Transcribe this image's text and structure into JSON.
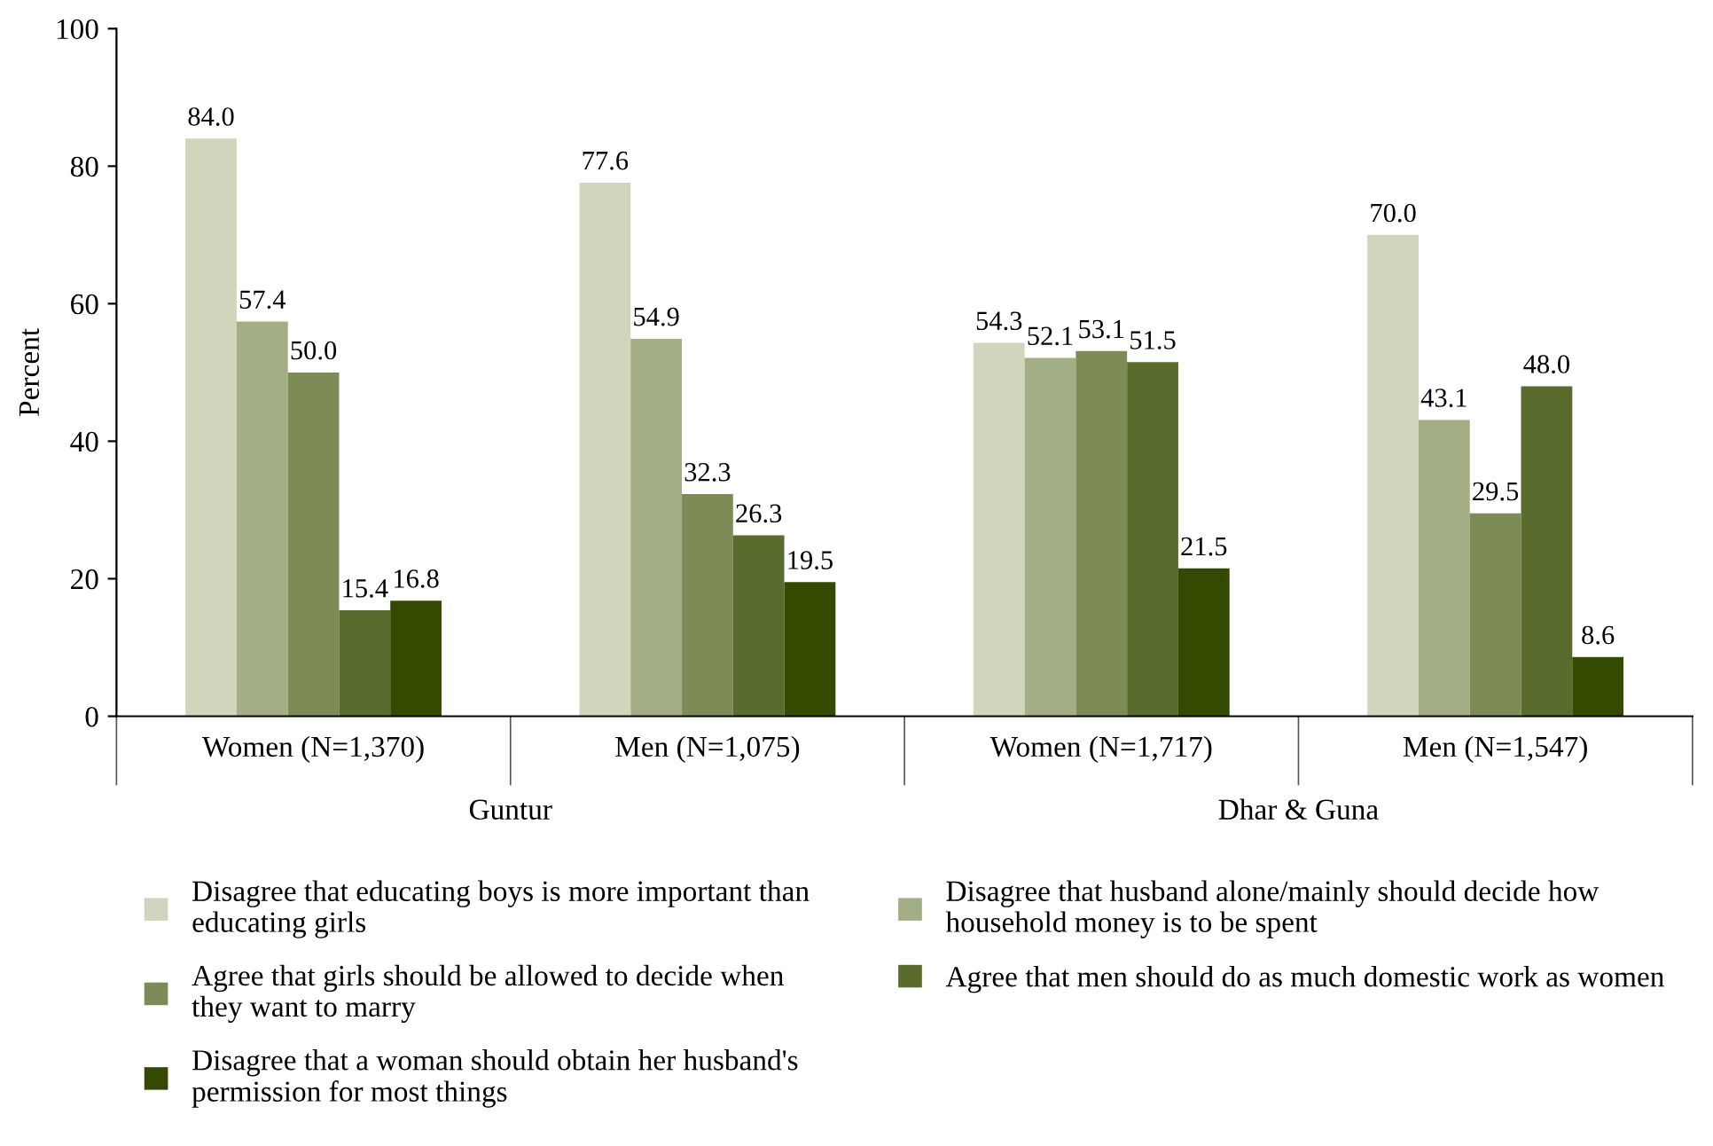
{
  "chart_data": {
    "type": "bar",
    "categories": [
      "Women (N=1,370)",
      "Men (N=1,075)",
      "Women (N=1,717)",
      "Men (N=1,547)"
    ],
    "ylabel": "Percent",
    "ylim": [
      0,
      100
    ],
    "yticks": [
      0,
      20,
      40,
      60,
      80,
      100
    ],
    "grid": false,
    "legend": "bottom",
    "annotations": [
      "Guntur",
      "Dhar & Guna"
    ],
    "series": [
      {
        "name": "Disagree that educating boys is more important than\neducating girls",
        "color": "#d0d5bb",
        "values": [
          84.0,
          77.6,
          54.3,
          70.0
        ],
        "value_labels": [
          "84.0",
          "77.6",
          "54.3",
          "70.0"
        ]
      },
      {
        "name": "Disagree that husband alone/mainly should decide how\nhousehold money is to be spent",
        "color": "#a3ae84",
        "values": [
          57.4,
          54.9,
          52.1,
          43.1
        ],
        "value_labels": [
          "57.4",
          "54.9",
          "52.1",
          "43.1"
        ]
      },
      {
        "name": "Agree that girls should be allowed to decide when\nthey want to marry",
        "color": "#7d8c57",
        "values": [
          50.0,
          32.3,
          53.1,
          29.5
        ],
        "value_labels": [
          "50.0",
          "32.3",
          "53.1",
          "29.5"
        ]
      },
      {
        "name": "Agree that men should do as much domestic work as women",
        "color": "#5a6b2e",
        "values": [
          15.4,
          26.3,
          51.5,
          48.0
        ],
        "value_labels": [
          "15.4",
          "26.3",
          "51.5",
          "48.0"
        ]
      },
      {
        "name": "Disagree that a woman should obtain her husband's\npermission for most things",
        "color": "#344a00",
        "values": [
          16.8,
          19.5,
          21.5,
          8.6
        ],
        "value_labels": [
          "16.8",
          "19.5",
          "21.5",
          "8.6"
        ]
      }
    ]
  }
}
